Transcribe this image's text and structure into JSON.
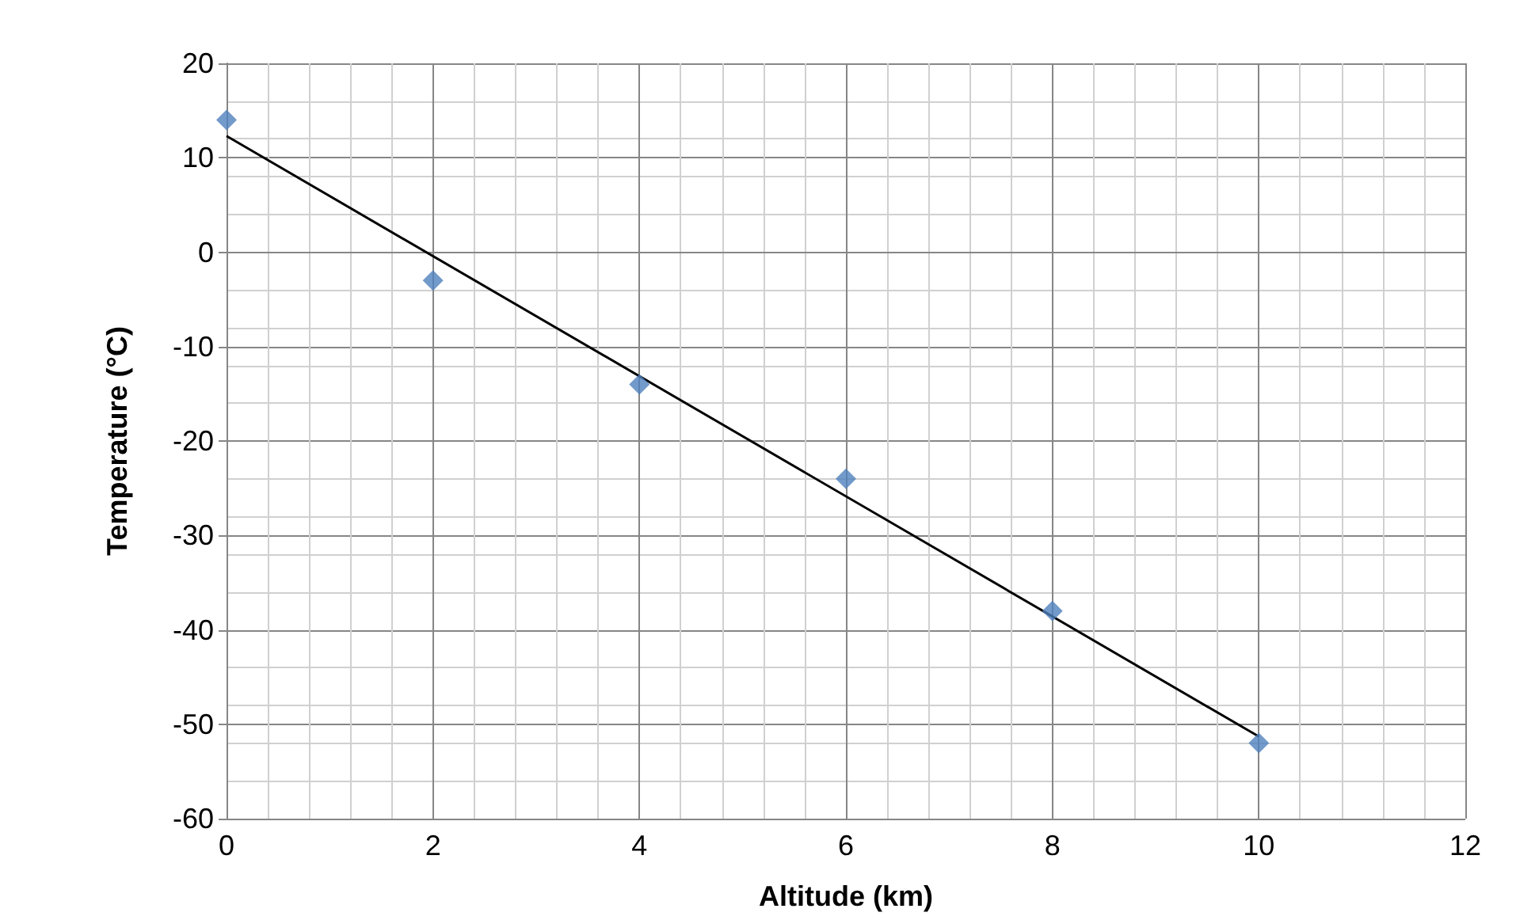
{
  "chart_data": {
    "type": "scatter",
    "xlabel": "Altitude (km)",
    "ylabel": "Temperature (°C)",
    "x": [
      0,
      2,
      4,
      6,
      8,
      10
    ],
    "series": [
      {
        "type": "scatter",
        "color": "#4f81bd",
        "values": [
          14,
          -3,
          -14,
          -24,
          -38,
          -52
        ],
        "marker": "diamond"
      },
      {
        "type": "line",
        "color": "#000000",
        "x": [
          0,
          10
        ],
        "values": [
          12.3,
          -51.3
        ],
        "marker": "none",
        "line_style": "solid"
      }
    ],
    "xlim": [
      0,
      12
    ],
    "xticks": [
      0,
      2,
      4,
      6,
      8,
      10,
      12
    ],
    "ylim": [
      -60,
      20
    ],
    "yticks": [
      -60,
      -50,
      -40,
      -30,
      -20,
      -10,
      0,
      10,
      20
    ],
    "grid": true
  }
}
